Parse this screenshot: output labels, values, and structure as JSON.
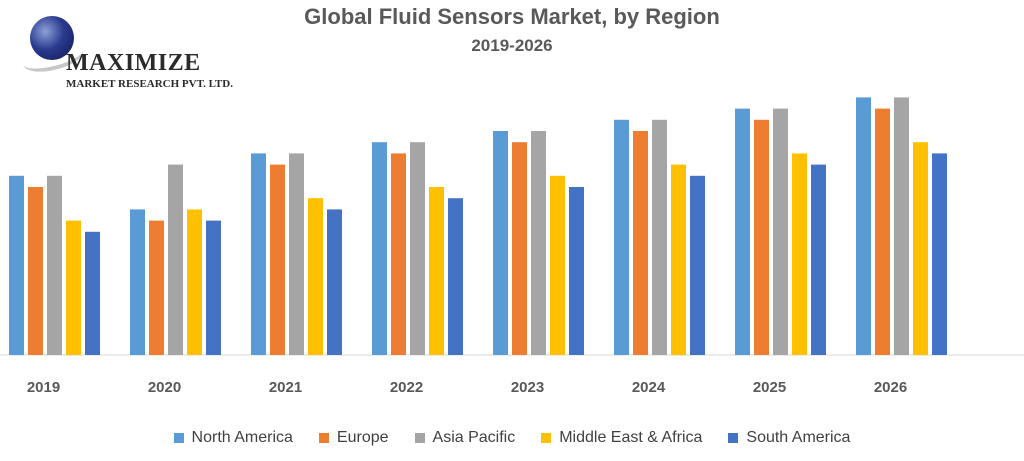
{
  "logo": {
    "brand": "MAXIMIZE",
    "subtitle": "MARKET RESEARCH PVT. LTD."
  },
  "chart_data": {
    "type": "bar",
    "title": "Global Fluid Sensors Market, by Region",
    "subtitle": "2019-2026",
    "xlabel": "",
    "ylabel": "",
    "ylim": [
      0,
      100
    ],
    "grid": false,
    "legend_position": "bottom",
    "categories": [
      "2019",
      "2020",
      "2021",
      "2022",
      "2023",
      "2024",
      "2025",
      "2026"
    ],
    "series": [
      {
        "name": "North America",
        "color": "#5B9BD5",
        "values": [
          64,
          52,
          72,
          76,
          80,
          84,
          88,
          92
        ]
      },
      {
        "name": "Europe",
        "color": "#ED7D31",
        "values": [
          60,
          48,
          68,
          72,
          76,
          80,
          84,
          88
        ]
      },
      {
        "name": "Asia Pacific",
        "color": "#A5A5A5",
        "values": [
          64,
          68,
          72,
          76,
          80,
          84,
          88,
          92
        ]
      },
      {
        "name": "Middle East & Africa",
        "color": "#FFC000",
        "values": [
          48,
          52,
          56,
          60,
          64,
          68,
          72,
          76
        ]
      },
      {
        "name": "South America",
        "color": "#4472C4",
        "values": [
          44,
          48,
          52,
          56,
          60,
          64,
          68,
          72
        ]
      }
    ]
  }
}
